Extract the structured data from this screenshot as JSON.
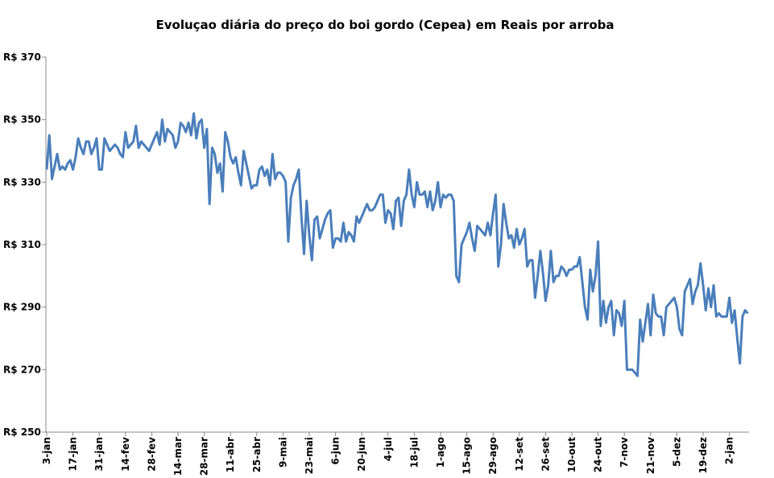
{
  "chart_data": {
    "type": "line",
    "title": "Evoluçao diária do preço do boi gordo (Cepea) em Reais por arroba",
    "categories": [
      "3-jan",
      null,
      null,
      null,
      null,
      null,
      null,
      null,
      null,
      null,
      "17-jan",
      null,
      null,
      null,
      null,
      null,
      null,
      null,
      null,
      null,
      "31-jan",
      null,
      null,
      null,
      null,
      null,
      null,
      null,
      null,
      null,
      "14-fev",
      null,
      null,
      null,
      null,
      null,
      null,
      null,
      null,
      null,
      "28-fev",
      null,
      null,
      null,
      null,
      null,
      null,
      null,
      null,
      null,
      "14-mar",
      null,
      null,
      null,
      null,
      null,
      null,
      null,
      null,
      null,
      "28-mar",
      null,
      null,
      null,
      null,
      null,
      null,
      null,
      null,
      null,
      "11-abr",
      null,
      null,
      null,
      null,
      null,
      null,
      null,
      null,
      null,
      "25-abr",
      null,
      null,
      null,
      null,
      null,
      null,
      null,
      null,
      null,
      "9-mai",
      null,
      null,
      null,
      null,
      null,
      null,
      null,
      null,
      null,
      "23-mai",
      null,
      null,
      null,
      null,
      null,
      null,
      null,
      null,
      null,
      "6-jun",
      null,
      null,
      null,
      null,
      null,
      null,
      null,
      null,
      null,
      "20-jun",
      null,
      null,
      null,
      null,
      null,
      null,
      null,
      null,
      null,
      "4-jul",
      null,
      null,
      null,
      null,
      null,
      null,
      null,
      null,
      null,
      "18-jul",
      null,
      null,
      null,
      null,
      null,
      null,
      null,
      null,
      null,
      "1-ago",
      null,
      null,
      null,
      null,
      null,
      null,
      null,
      null,
      null,
      "15-ago",
      null,
      null,
      null,
      null,
      null,
      null,
      null,
      null,
      null,
      "29-ago",
      null,
      null,
      null,
      null,
      null,
      null,
      null,
      null,
      null,
      "12-set",
      null,
      null,
      null,
      null,
      null,
      null,
      null,
      null,
      null,
      "26-set",
      null,
      null,
      null,
      null,
      null,
      null,
      null,
      null,
      null,
      "10-out",
      null,
      null,
      null,
      null,
      null,
      null,
      null,
      null,
      null,
      "24-out",
      null,
      null,
      null,
      null,
      null,
      null,
      null,
      null,
      null,
      "7-nov",
      null,
      null,
      null,
      null,
      null,
      null,
      null,
      null,
      null,
      "21-nov",
      null,
      null,
      null,
      null,
      null,
      null,
      null,
      null,
      null,
      "5-dez",
      null,
      null,
      null,
      null,
      null,
      null,
      null,
      null,
      null,
      "19-dez",
      null,
      null,
      null,
      null,
      null,
      null,
      null,
      null,
      null,
      "2-jan",
      null,
      null,
      null,
      null,
      null,
      null,
      null
    ],
    "series": [
      {
        "color": "#4a7ebb",
        "values": [
          334,
          345,
          331,
          335,
          339,
          334,
          335,
          334,
          336,
          337,
          334,
          338,
          344,
          341,
          339,
          343,
          343,
          339,
          341,
          344,
          334,
          334,
          344,
          342,
          340,
          341,
          342,
          341,
          339,
          338,
          346,
          341,
          342,
          343,
          348,
          341,
          343,
          342,
          341,
          340,
          342,
          344,
          346,
          342,
          350,
          343,
          347,
          346,
          345,
          341,
          343,
          349,
          348,
          346,
          349,
          345,
          352,
          344,
          349,
          350,
          341,
          347,
          323,
          341,
          339,
          333,
          336,
          327,
          346,
          343,
          338,
          336,
          338,
          333,
          329,
          340,
          336,
          332,
          328,
          329,
          329,
          334,
          335,
          332,
          334,
          329,
          339,
          331,
          333,
          333,
          332,
          330,
          311,
          325,
          329,
          331,
          334,
          319,
          307,
          324,
          313,
          305,
          318,
          319,
          312,
          315,
          318,
          320,
          321,
          309,
          312,
          312,
          311,
          317,
          311,
          314,
          313,
          311,
          319,
          317,
          319,
          321,
          323,
          321,
          321,
          322,
          324,
          326,
          326,
          317,
          321,
          320,
          315,
          324,
          325,
          316,
          324,
          326,
          334,
          326,
          322,
          330,
          326,
          326,
          327,
          322,
          327,
          321,
          324,
          330,
          322,
          326,
          325,
          326,
          326,
          324,
          300,
          298,
          310,
          312,
          314,
          317,
          312,
          308,
          316,
          315,
          314,
          313,
          317,
          313,
          320,
          326,
          303,
          310,
          323,
          317,
          312,
          313,
          309,
          315,
          310,
          312,
          315,
          303,
          305,
          305,
          293,
          300,
          308,
          301,
          292,
          297,
          308,
          298,
          300,
          300,
          303,
          302,
          300,
          302,
          302,
          303,
          303,
          306,
          298,
          290,
          286,
          302,
          295,
          300,
          311,
          284,
          292,
          285,
          290,
          292,
          281,
          289,
          288,
          284,
          292,
          270,
          270,
          270,
          269,
          268,
          286,
          279,
          285,
          291,
          281,
          294,
          288,
          287,
          287,
          281,
          290,
          291,
          292,
          293,
          290,
          283,
          281,
          295,
          297,
          299,
          291,
          295,
          297,
          304,
          297,
          289,
          296,
          290,
          297,
          287,
          288,
          287,
          287,
          287,
          293,
          285,
          289,
          280,
          272,
          287,
          289,
          288
        ]
      }
    ],
    "ylim": [
      250,
      370
    ],
    "yticks": [
      {
        "value": 250,
        "label": "R$ 250"
      },
      {
        "value": 270,
        "label": "R$ 270"
      },
      {
        "value": 290,
        "label": "R$ 290"
      },
      {
        "value": 310,
        "label": "R$ 310"
      },
      {
        "value": 330,
        "label": "R$ 330"
      },
      {
        "value": 350,
        "label": "R$ 350"
      },
      {
        "value": 370,
        "label": "R$ 370"
      }
    ],
    "grid": false
  }
}
